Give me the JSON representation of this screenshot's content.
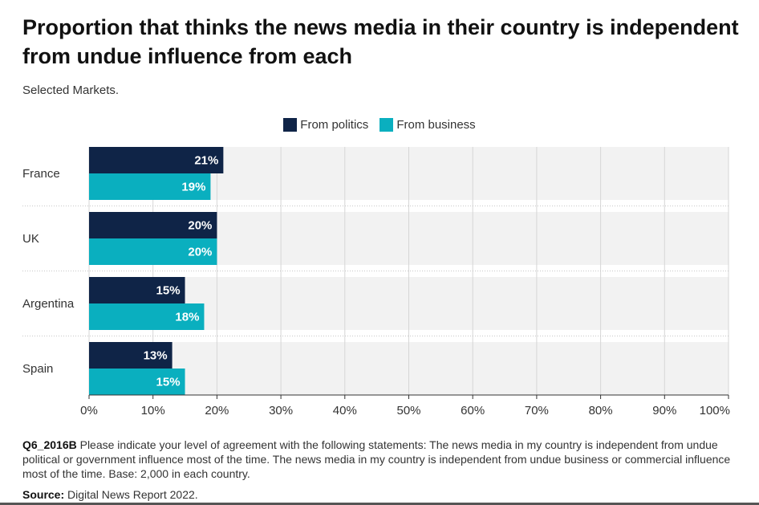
{
  "title": "Proportion that thinks the news media in their country is independent from undue influence from each",
  "subtitle": "Selected Markets.",
  "colors": {
    "politics": "#0f2447",
    "business": "#0aafbf"
  },
  "chart_data": {
    "type": "bar",
    "orientation": "horizontal",
    "categories": [
      "France",
      "UK",
      "Argentina",
      "Spain"
    ],
    "series": [
      {
        "name": "From politics",
        "values": [
          21,
          20,
          15,
          13
        ],
        "labels": [
          "21%",
          "20%",
          "15%",
          "13%"
        ]
      },
      {
        "name": "From business",
        "values": [
          19,
          20,
          18,
          15
        ],
        "labels": [
          "19%",
          "20%",
          "18%",
          "15%"
        ]
      }
    ],
    "xlim": [
      0,
      100
    ],
    "xticks": [
      "0%",
      "10%",
      "20%",
      "30%",
      "40%",
      "50%",
      "60%",
      "70%",
      "80%",
      "90%",
      "100%"
    ],
    "grid": true,
    "legend_position": "top-center"
  },
  "footnote": {
    "code": "Q6_2016B",
    "text": "Please indicate your level of agreement with the following statements: The news media in my country is independent from undue political or government influence most of the time. The news media in my country is independent from undue business or commercial influence most of the time. Base: 2,000 in each country."
  },
  "source": {
    "label": "Source:",
    "text": "Digital News Report 2022."
  }
}
